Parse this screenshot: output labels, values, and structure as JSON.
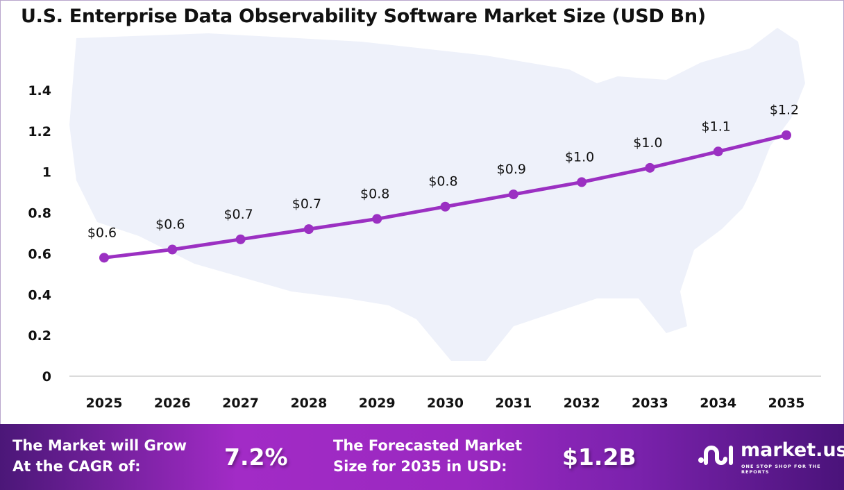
{
  "chart_data": {
    "type": "line",
    "title": "U.S. Enterprise Data Observability Software Market Size (USD Bn)",
    "categories": [
      "2025",
      "2026",
      "2027",
      "2028",
      "2029",
      "2030",
      "2031",
      "2032",
      "2033",
      "2034",
      "2035"
    ],
    "values": [
      0.58,
      0.62,
      0.67,
      0.72,
      0.77,
      0.83,
      0.89,
      0.95,
      1.02,
      1.1,
      1.18
    ],
    "data_labels": [
      "$0.6",
      "$0.6",
      "$0.7",
      "$0.7",
      "$0.8",
      "$0.8",
      "$0.9",
      "$1.0",
      "$1.0",
      "$1.1",
      "$1.2"
    ],
    "yticks": [
      "0",
      "0.2",
      "0.4",
      "0.6",
      "0.8",
      "1",
      "1.2",
      "1.4"
    ],
    "ylim": [
      0,
      1.4
    ],
    "grid": false,
    "line_color": "#9b30c2",
    "background": "US map silhouette"
  },
  "banner": {
    "cagr_text_1": "The Market will Grow",
    "cagr_text_2": "At the CAGR of:",
    "cagr_value": "7.2%",
    "forecast_text_1": "The Forecasted Market",
    "forecast_text_2": "Size for 2035 in USD:",
    "forecast_value": "$1.2B"
  },
  "logo": {
    "name": "market.us",
    "tagline": "ONE STOP SHOP FOR THE REPORTS"
  }
}
